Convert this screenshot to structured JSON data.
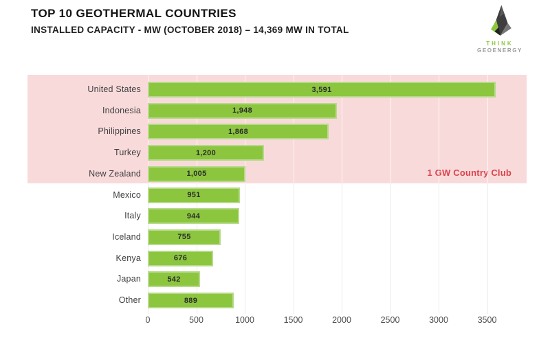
{
  "header": {
    "title": "TOP 10 GEOTHERMAL COUNTRIES",
    "subtitle": "INSTALLED CAPACITY - MW (OCTOBER 2018) – 14,369 MW IN TOTAL"
  },
  "logo": {
    "line1": "THINK",
    "line2": "GEOENERGY"
  },
  "annotation": {
    "club_label": "1 GW Country Club"
  },
  "chart_data": {
    "type": "bar",
    "orientation": "horizontal",
    "title": "TOP 10 GEOTHERMAL COUNTRIES",
    "subtitle": "INSTALLED CAPACITY - MW (OCTOBER 2018) – 14,369 MW IN TOTAL",
    "unit": "MW",
    "total_mw": "14,369",
    "categories": [
      "United States",
      "Indonesia",
      "Philippines",
      "Turkey",
      "New Zealand",
      "Mexico",
      "Italy",
      "Iceland",
      "Kenya",
      "Japan",
      "Other"
    ],
    "values": [
      3591,
      1948,
      1868,
      1200,
      1005,
      951,
      944,
      755,
      676,
      542,
      889
    ],
    "value_labels": [
      "3,591",
      "1,948",
      "1,868",
      "1,200",
      "1,005",
      "951",
      "944",
      "755",
      "676",
      "542",
      "889"
    ],
    "x_ticks": [
      0,
      500,
      1000,
      1500,
      2000,
      2500,
      3000,
      3500
    ],
    "xlim": [
      0,
      4000
    ],
    "grid": true,
    "highlight_band": {
      "label": "1 GW Country Club",
      "rows_covered": [
        "United States",
        "Indonesia",
        "Philippines",
        "Turkey",
        "New Zealand"
      ],
      "threshold_mw": 1000
    },
    "colors": {
      "bar": "#8cc63f",
      "bar_edge": "#b6da8a",
      "band": "#f9dadb",
      "band_text": "#d9444c",
      "title_text": "#141414",
      "tick_text": "#4c4c4c"
    }
  }
}
